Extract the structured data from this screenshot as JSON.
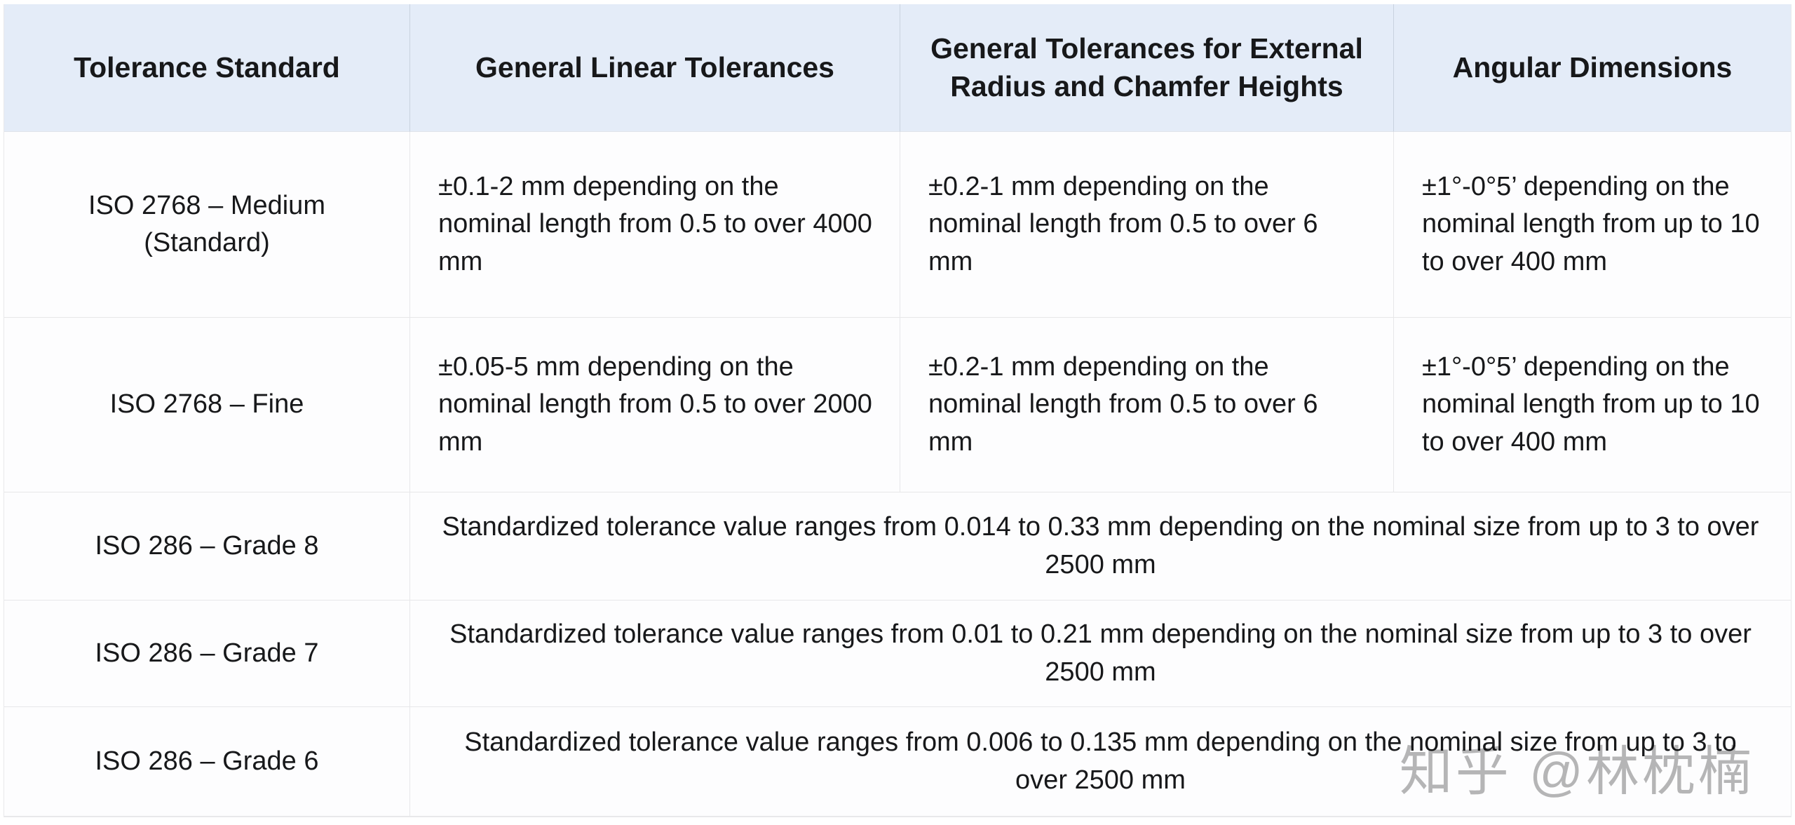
{
  "table": {
    "columns": [
      {
        "label": "Tolerance Standard"
      },
      {
        "label": "General Linear Tolerances"
      },
      {
        "label": "General Tolerances for External Radius and Chamfer Heights"
      },
      {
        "label": "Angular Dimensions"
      }
    ],
    "rows": [
      {
        "standard": "ISO 2768 – Medium (Standard)",
        "linear": "±0.1-2 mm depending on the nominal length from 0.5 to over 4000 mm",
        "radius_chamfer": "±0.2-1 mm depending on the nominal length from 0.5 to over 6 mm",
        "angular": "±1°-0°5’ depending on the nominal length from up to 10 to over 400 mm"
      },
      {
        "standard": "ISO 2768 – Fine",
        "linear": "±0.05-5 mm depending on the nominal length from 0.5 to over 2000 mm",
        "radius_chamfer": "±0.2-1 mm depending on the nominal length from 0.5 to over 6 mm",
        "angular": "±1°-0°5’ depending on the nominal length from up to 10 to over 400 mm"
      },
      {
        "standard": "ISO 286 – Grade 8",
        "merged": "Standardized tolerance value ranges from 0.014 to 0.33 mm depending on the nominal size from up to 3 to over 2500 mm"
      },
      {
        "standard": "ISO 286 – Grade 7",
        "merged": "Standardized tolerance value ranges from 0.01 to 0.21 mm depending on the nominal size from up to 3 to over 2500 mm"
      },
      {
        "standard": "ISO 286 – Grade 6",
        "merged": "Standardized tolerance value ranges from 0.006 to 0.135 mm depending on the nominal size from up to 3 to over 2500 mm"
      }
    ]
  },
  "watermark": {
    "text": "知乎 @林枕楠"
  },
  "colors": {
    "header_bg": "#E4ECF8",
    "body_bg": "#FDFDFE",
    "border": "#E7E7E9",
    "header_border": "#C9D2DF",
    "text": "#17181A",
    "watermark": "#ABABAB"
  }
}
